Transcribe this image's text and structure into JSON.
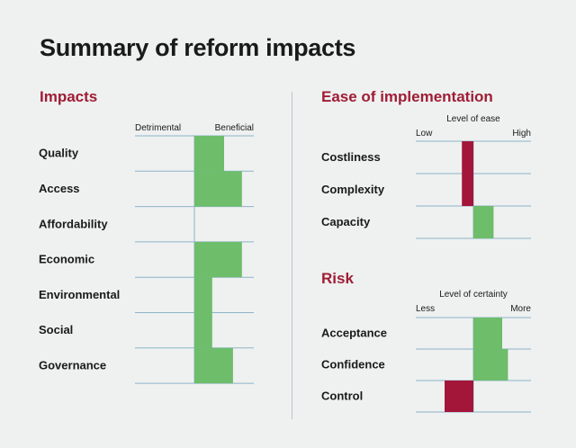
{
  "title": "Summary of reform impacts",
  "colors": {
    "positive": "#6dbd6a",
    "negative": "#a3163a",
    "heading": "#a01c35",
    "grid": "#8fb3c9"
  },
  "chart_data": [
    {
      "type": "bar",
      "orientation": "horizontal",
      "section": "Impacts",
      "scale_labels": {
        "left": "Detrimental",
        "right": "Beneficial"
      },
      "categories": [
        "Quality",
        "Access",
        "Affordability",
        "Economic",
        "Environmental",
        "Social",
        "Governance"
      ],
      "values": [
        0.5,
        0.8,
        0,
        0.8,
        0.3,
        0.3,
        0.65
      ],
      "xlim": [
        -1,
        1
      ],
      "xlabel": "",
      "ylabel": ""
    },
    {
      "type": "bar",
      "orientation": "horizontal",
      "section": "Ease of implementation",
      "axis_title": "Level of ease",
      "scale_labels": {
        "left": "Low",
        "right": "High"
      },
      "categories": [
        "Costliness",
        "Complexity",
        "Capacity"
      ],
      "values": [
        -0.2,
        -0.2,
        0.35
      ],
      "xlim": [
        -1,
        1
      ]
    },
    {
      "type": "bar",
      "orientation": "horizontal",
      "section": "Risk",
      "axis_title": "Level of certainty",
      "scale_labels": {
        "left": "Less",
        "right": "More"
      },
      "categories": [
        "Acceptance",
        "Confidence",
        "Control"
      ],
      "values": [
        0.5,
        0.6,
        -0.5
      ],
      "xlim": [
        -1,
        1
      ]
    }
  ]
}
